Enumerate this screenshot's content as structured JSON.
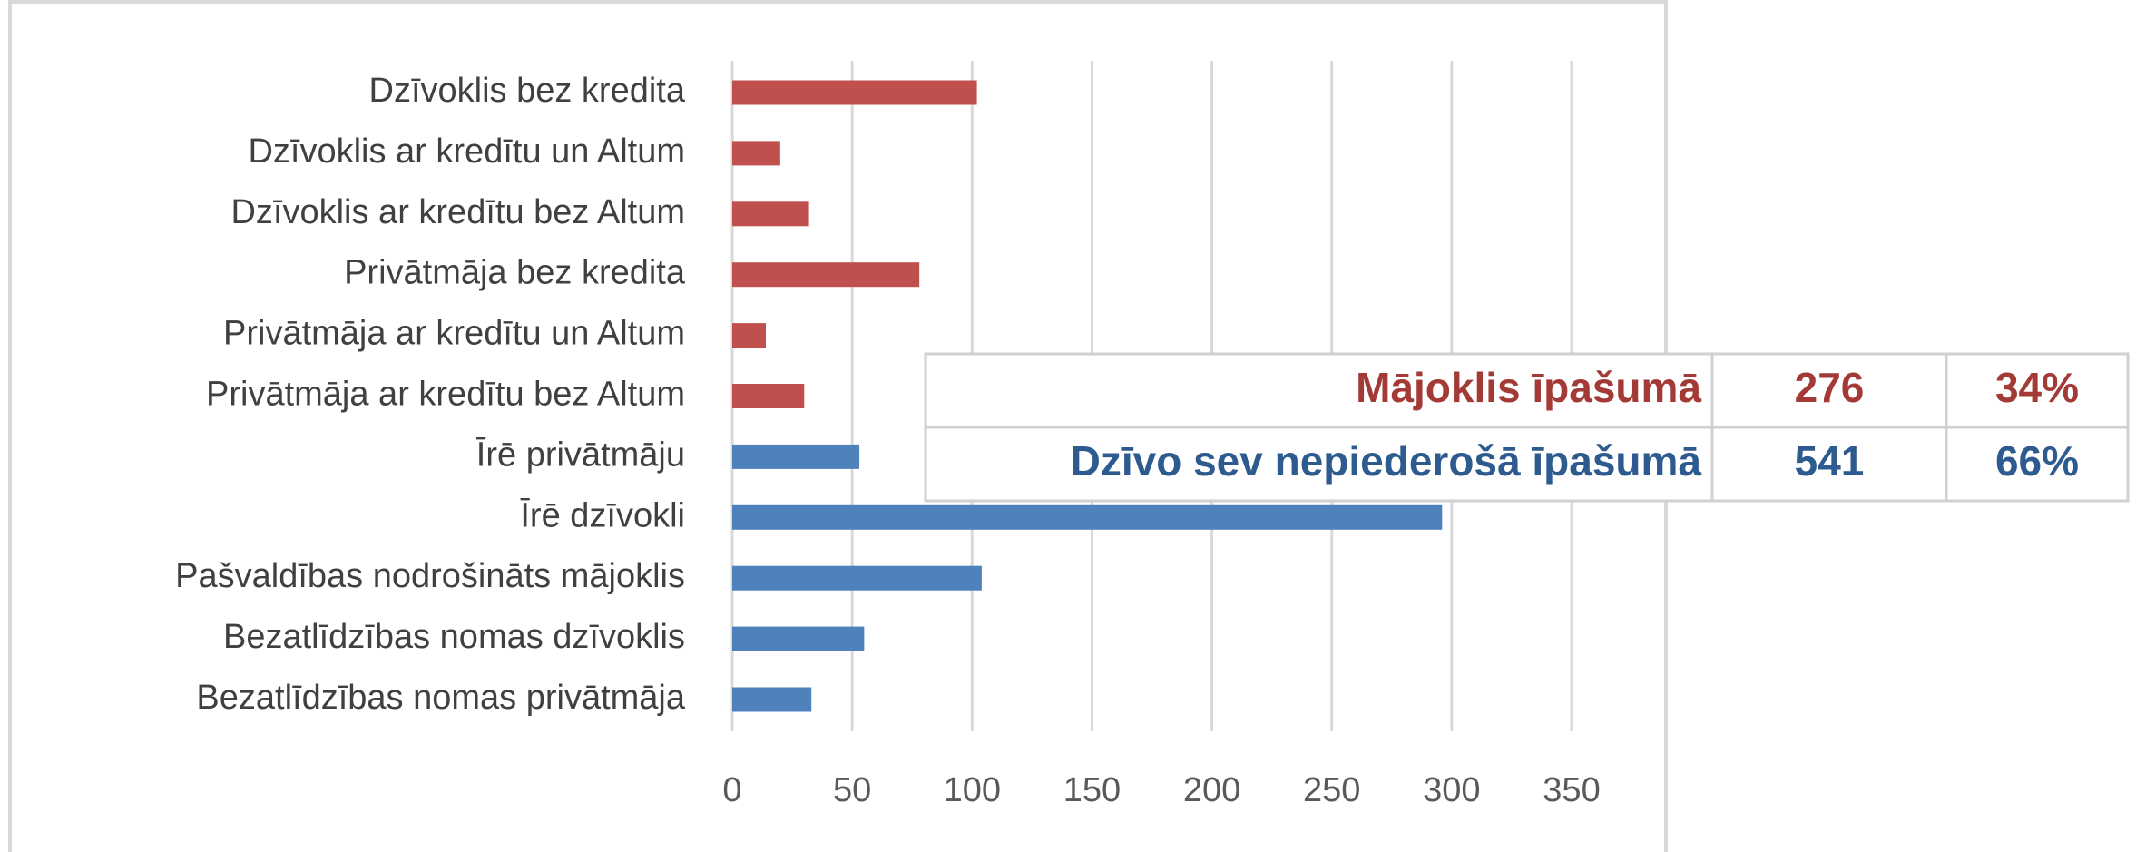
{
  "chart_data": {
    "type": "bar",
    "orientation": "horizontal",
    "categories": [
      "Dzīvoklis bez kredita",
      "Dzīvoklis ar kredītu un Altum",
      "Dzīvoklis ar kredītu bez Altum",
      "Privātmāja bez kredita",
      "Privātmāja ar kredītu un Altum",
      "Privātmāja ar kredītu bez Altum",
      "Īrē privātmāju",
      "Īrē dzīvokli",
      "Pašvaldības nodrošināts mājoklis",
      "Bezatlīdzības nomas dzīvoklis",
      "Bezatlīdzības nomas privātmāja"
    ],
    "values": [
      102,
      20,
      32,
      78,
      14,
      30,
      53,
      296,
      104,
      55,
      33
    ],
    "colors": [
      "#c0504d",
      "#c0504d",
      "#c0504d",
      "#c0504d",
      "#c0504d",
      "#c0504d",
      "#4f81bd",
      "#4f81bd",
      "#4f81bd",
      "#4f81bd",
      "#4f81bd"
    ],
    "xlim": [
      0,
      350
    ],
    "xticks": [
      0,
      50,
      100,
      150,
      200,
      250,
      300,
      350
    ],
    "grid": true
  },
  "table": {
    "rows": [
      [
        "Mājoklis īpašumā",
        "276",
        "34%"
      ],
      [
        "Dzīvo sev nepiederošā īpašumā",
        "541",
        "66%"
      ]
    ],
    "row_colors": [
      "#a33a36",
      "#2e5b8f"
    ]
  }
}
